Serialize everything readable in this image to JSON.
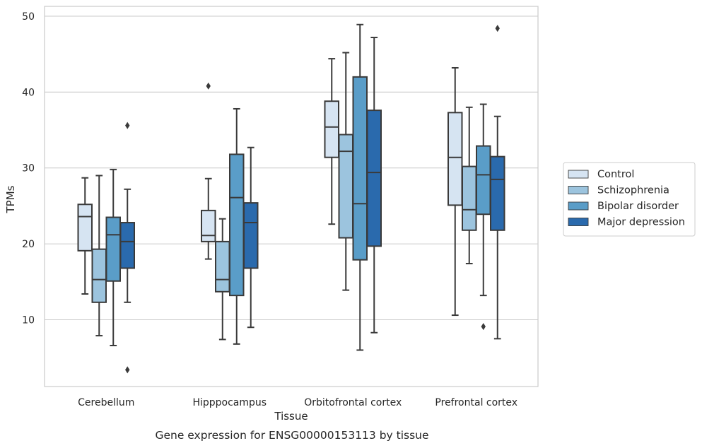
{
  "chart_data": {
    "type": "box",
    "title": "",
    "caption": "Gene expression for ENSG00000153113 by tissue",
    "xlabel": "Tissue",
    "ylabel": "TPMs",
    "ylim": [
      1.2,
      51.3
    ],
    "yticks": [
      10,
      20,
      30,
      40,
      50
    ],
    "grid": true,
    "legend_position": "right",
    "categories": [
      "Cerebellum",
      "Hipppocampus",
      "Orbitofrontal cortex",
      "Prefrontal cortex"
    ],
    "series": [
      {
        "name": "Control",
        "color": "#d6e4f2",
        "boxes": [
          {
            "whisker_low": 13.4,
            "q1": 19.1,
            "median": 23.6,
            "q3": 25.2,
            "whisker_high": 28.7,
            "outliers": []
          },
          {
            "whisker_low": 18.0,
            "q1": 20.3,
            "median": 21.1,
            "q3": 24.4,
            "whisker_high": 28.6,
            "outliers": [
              40.8
            ]
          },
          {
            "whisker_low": 22.6,
            "q1": 31.4,
            "median": 35.4,
            "q3": 38.8,
            "whisker_high": 44.4,
            "outliers": []
          },
          {
            "whisker_low": 10.6,
            "q1": 25.1,
            "median": 31.4,
            "q3": 37.3,
            "whisker_high": 43.2,
            "outliers": []
          }
        ]
      },
      {
        "name": "Schizophrenia",
        "color": "#9cc4de",
        "boxes": [
          {
            "whisker_low": 7.9,
            "q1": 12.3,
            "median": 15.3,
            "q3": 19.3,
            "whisker_high": 29.0,
            "outliers": []
          },
          {
            "whisker_low": 7.4,
            "q1": 13.7,
            "median": 15.3,
            "q3": 20.3,
            "whisker_high": 23.3,
            "outliers": []
          },
          {
            "whisker_low": 13.9,
            "q1": 20.8,
            "median": 32.2,
            "q3": 34.4,
            "whisker_high": 45.2,
            "outliers": []
          },
          {
            "whisker_low": 17.4,
            "q1": 21.8,
            "median": 24.5,
            "q3": 30.2,
            "whisker_high": 38.0,
            "outliers": []
          }
        ]
      },
      {
        "name": "Bipolar disorder",
        "color": "#5a9dc8",
        "boxes": [
          {
            "whisker_low": 6.6,
            "q1": 15.1,
            "median": 21.2,
            "q3": 23.5,
            "whisker_high": 29.8,
            "outliers": []
          },
          {
            "whisker_low": 6.8,
            "q1": 13.2,
            "median": 26.1,
            "q3": 31.8,
            "whisker_high": 37.8,
            "outliers": []
          },
          {
            "whisker_low": 6.0,
            "q1": 17.9,
            "median": 25.3,
            "q3": 42.0,
            "whisker_high": 48.9,
            "outliers": []
          },
          {
            "whisker_low": 13.2,
            "q1": 23.9,
            "median": 29.1,
            "q3": 32.9,
            "whisker_high": 38.4,
            "outliers": [
              9.1
            ]
          }
        ]
      },
      {
        "name": "Major depression",
        "color": "#2a6aad",
        "boxes": [
          {
            "whisker_low": 12.3,
            "q1": 16.8,
            "median": 20.3,
            "q3": 22.8,
            "whisker_high": 27.2,
            "outliers": [
              35.6,
              3.4
            ]
          },
          {
            "whisker_low": 9.0,
            "q1": 16.8,
            "median": 22.8,
            "q3": 25.4,
            "whisker_high": 32.7,
            "outliers": []
          },
          {
            "whisker_low": 8.3,
            "q1": 19.7,
            "median": 29.4,
            "q3": 37.6,
            "whisker_high": 47.2,
            "outliers": []
          },
          {
            "whisker_low": 7.5,
            "q1": 21.8,
            "median": 28.5,
            "q3": 31.5,
            "whisker_high": 36.8,
            "outliers": [
              48.4
            ]
          }
        ]
      }
    ]
  }
}
